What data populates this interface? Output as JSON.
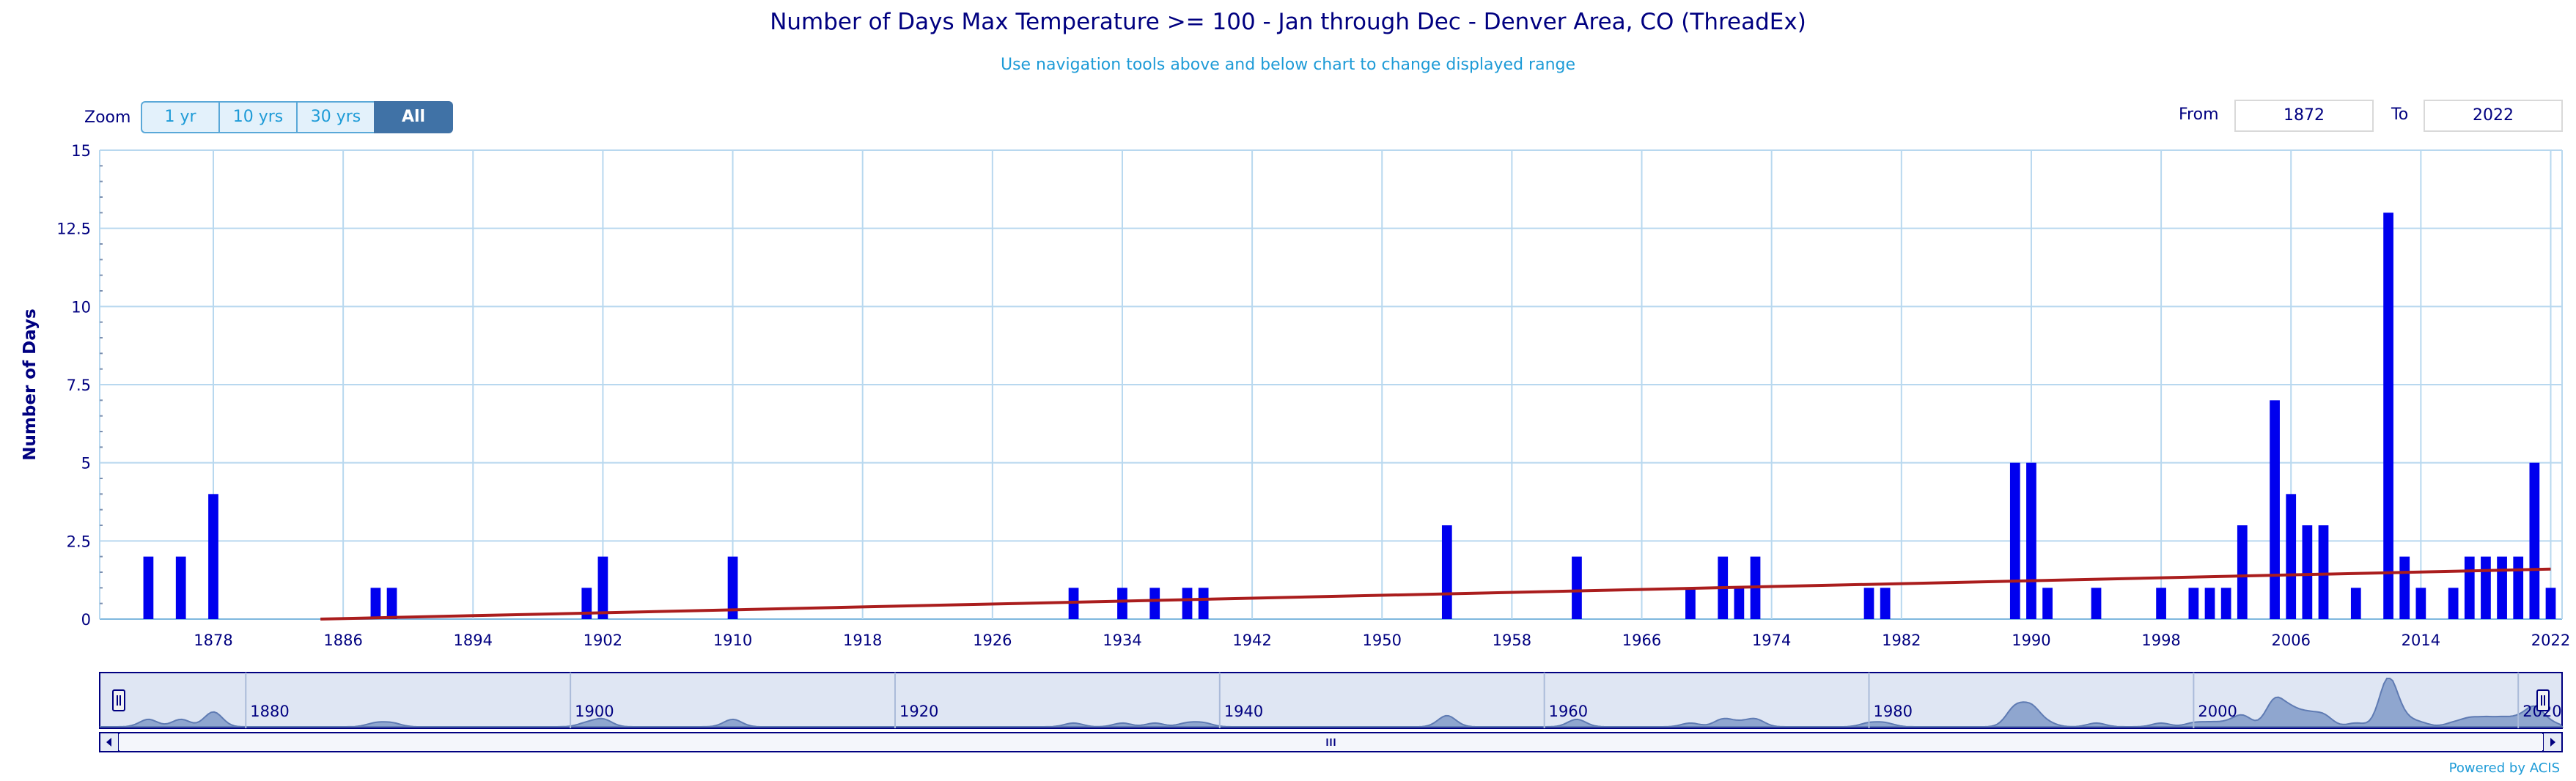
{
  "title": "Number of Days Max Temperature >= 100 - Jan through Dec - Denver Area, CO (ThreadEx)",
  "subtitle": "Use navigation tools above and below chart to change displayed range",
  "zoom": {
    "label": "Zoom",
    "buttons": [
      "1 yr",
      "10 yrs",
      "30 yrs",
      "All"
    ],
    "active": "All"
  },
  "range": {
    "from_label": "From",
    "from_value": "1872",
    "to_label": "To",
    "to_value": "2022"
  },
  "credit": "Powered by ACIS",
  "colors": {
    "bars": "#0000ee",
    "trend": "#aa1d1d",
    "grid": "#b8d8ef",
    "text": "#000080",
    "navigator_fill": "#8fa6cf"
  },
  "chart_data": {
    "type": "bar",
    "title": "Number of Days Max Temperature >= 100 - Jan through Dec - Denver Area, CO (ThreadEx)",
    "ylabel": "Number of Days",
    "xlabel": "",
    "ylim": [
      0,
      15
    ],
    "xlim": [
      1872,
      2022
    ],
    "yticks": [
      "0",
      "2.5",
      "5",
      "7.5",
      "10",
      "12.5",
      "15"
    ],
    "xticks": [
      "1878",
      "1886",
      "1894",
      "1902",
      "1910",
      "1918",
      "1926",
      "1934",
      "1942",
      "1950",
      "1958",
      "1966",
      "1974",
      "1982",
      "1990",
      "1998",
      "2006",
      "2014",
      "2022"
    ],
    "grid": true,
    "series": [
      {
        "type": "bar",
        "points": [
          [
            1874,
            2
          ],
          [
            1876,
            2
          ],
          [
            1878,
            4
          ],
          [
            1888,
            1
          ],
          [
            1889,
            1
          ],
          [
            1901,
            1
          ],
          [
            1902,
            2
          ],
          [
            1910,
            2
          ],
          [
            1931,
            1
          ],
          [
            1934,
            1
          ],
          [
            1936,
            1
          ],
          [
            1938,
            1
          ],
          [
            1939,
            1
          ],
          [
            1954,
            3
          ],
          [
            1962,
            2
          ],
          [
            1969,
            1
          ],
          [
            1971,
            2
          ],
          [
            1972,
            1
          ],
          [
            1973,
            2
          ],
          [
            1980,
            1
          ],
          [
            1981,
            1
          ],
          [
            1989,
            5
          ],
          [
            1990,
            5
          ],
          [
            1991,
            1
          ],
          [
            1994,
            1
          ],
          [
            1998,
            1
          ],
          [
            2000,
            1
          ],
          [
            2001,
            1
          ],
          [
            2002,
            1
          ],
          [
            2003,
            3
          ],
          [
            2005,
            7
          ],
          [
            2006,
            4
          ],
          [
            2007,
            3
          ],
          [
            2008,
            3
          ],
          [
            2010,
            1
          ],
          [
            2012,
            13
          ],
          [
            2013,
            2
          ],
          [
            2014,
            1
          ],
          [
            2016,
            1
          ],
          [
            2017,
            2
          ],
          [
            2018,
            2
          ],
          [
            2019,
            2
          ],
          [
            2020,
            2
          ],
          [
            2021,
            5
          ],
          [
            2022,
            1
          ]
        ]
      },
      {
        "type": "line",
        "x": [
          1884.6,
          2022
        ],
        "y": [
          0,
          1.6
        ]
      }
    ],
    "navigator": {
      "labels": [
        "1880",
        "1900",
        "1920",
        "1940",
        "1960",
        "1980",
        "2000",
        "2020"
      ]
    }
  }
}
